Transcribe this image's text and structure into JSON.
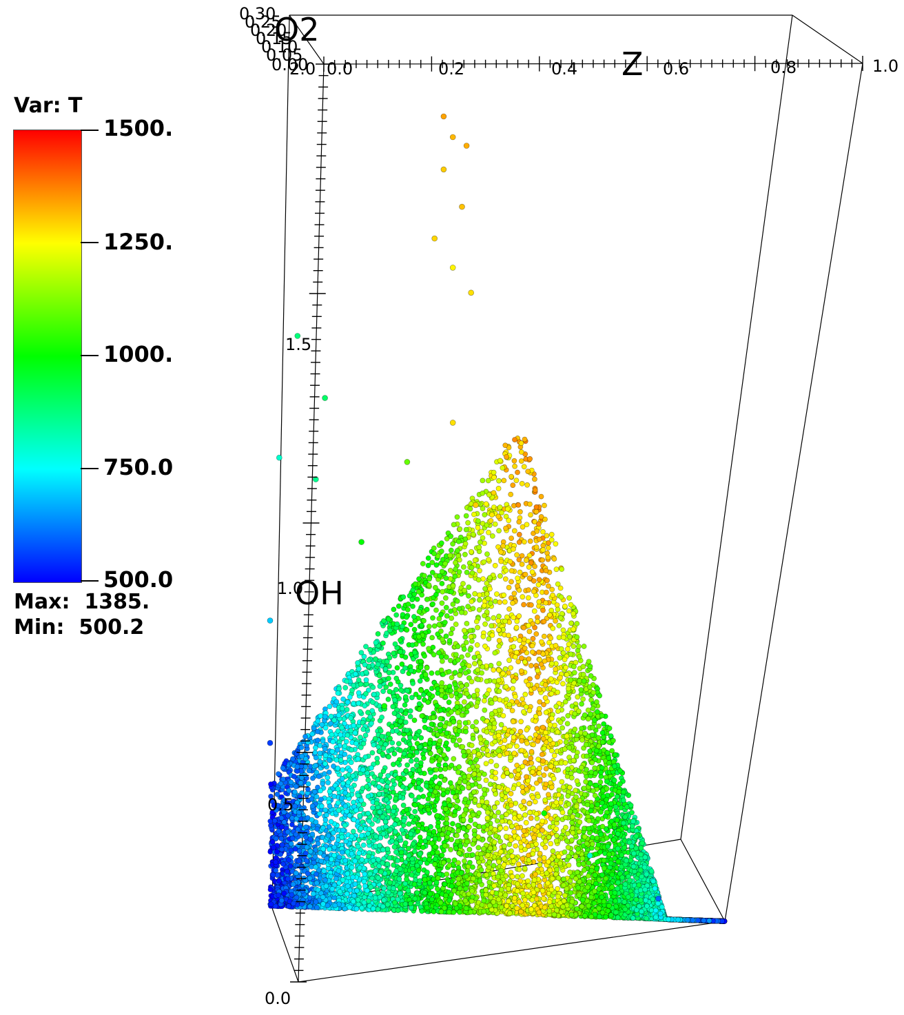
{
  "legend": {
    "title": "Var: T",
    "ticks": [
      "1500.",
      "1250.",
      "1000.",
      "750.0",
      "500.0"
    ],
    "max_label": "Max:  1385.",
    "min_label": "Min:  500.2",
    "colormap": [
      "#ff0000",
      "#ffff00",
      "#00ff00",
      "#00ffff",
      "#0000ff"
    ]
  },
  "axes": {
    "z_title": "Z",
    "oh_title": "OH",
    "o2_title": "O2",
    "z_ticks": [
      "0.0",
      "0.2",
      "0.4",
      "0.6",
      "0.8",
      "1.0"
    ],
    "oh_ticks": [
      "0.0",
      "0.5",
      "1.0",
      "1.5",
      "2.0"
    ],
    "o2_ticks": [
      "0.30",
      "0.25",
      "0.20",
      "0.15",
      "0.10",
      "0.05",
      "0.00"
    ]
  },
  "chart_data": {
    "type": "scatter",
    "title": "",
    "xlabel": "Z",
    "ylabel": "OH",
    "zlabel": "O2",
    "xlim": [
      0.0,
      1.0
    ],
    "ylim": [
      0.0,
      2.0
    ],
    "zlim": [
      0.0,
      0.3
    ],
    "color_variable": "T",
    "color_range": [
      500.0,
      1500.0
    ],
    "data_max": 1385,
    "data_min": 500.2,
    "grid": false,
    "legend": "left",
    "sample_points": [
      {
        "z": 0.38,
        "oh": 1.95,
        "t": 1340
      },
      {
        "z": 0.4,
        "oh": 1.9,
        "t": 1320
      },
      {
        "z": 0.43,
        "oh": 1.88,
        "t": 1330
      },
      {
        "z": 0.38,
        "oh": 1.82,
        "t": 1300
      },
      {
        "z": 0.42,
        "oh": 1.73,
        "t": 1310
      },
      {
        "z": 0.36,
        "oh": 1.65,
        "t": 1290
      },
      {
        "z": 0.4,
        "oh": 1.58,
        "t": 1260
      },
      {
        "z": 0.44,
        "oh": 1.52,
        "t": 1280
      },
      {
        "z": 0.06,
        "oh": 1.4,
        "t": 880
      },
      {
        "z": 0.12,
        "oh": 1.25,
        "t": 900
      },
      {
        "z": 0.02,
        "oh": 1.1,
        "t": 800
      },
      {
        "z": 0.1,
        "oh": 1.05,
        "t": 860
      },
      {
        "z": 0.3,
        "oh": 1.1,
        "t": 1100
      },
      {
        "z": 0.4,
        "oh": 1.2,
        "t": 1280
      },
      {
        "z": 0.45,
        "oh": 1.0,
        "t": 1300
      },
      {
        "z": 0.2,
        "oh": 0.9,
        "t": 1000
      },
      {
        "z": 0.0,
        "oh": 0.7,
        "t": 700
      },
      {
        "z": 0.0,
        "oh": 0.4,
        "t": 560
      },
      {
        "z": 0.25,
        "oh": 0.5,
        "t": 1020
      },
      {
        "z": 0.5,
        "oh": 0.4,
        "t": 1150
      },
      {
        "z": 0.6,
        "oh": 0.25,
        "t": 1000
      },
      {
        "z": 0.7,
        "oh": 0.15,
        "t": 800
      },
      {
        "z": 0.85,
        "oh": 0.05,
        "t": 600
      }
    ]
  }
}
